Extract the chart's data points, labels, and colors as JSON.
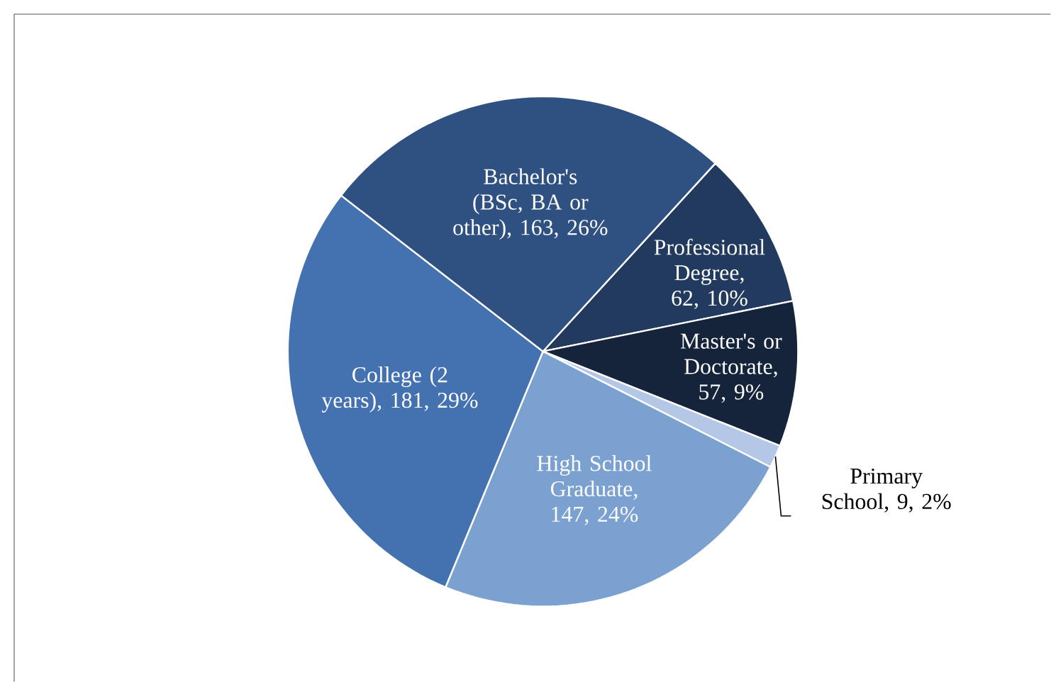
{
  "chart_data": {
    "type": "pie",
    "categories": [
      "Professional Degree",
      "Master's or Doctorate",
      "Primary School",
      "High School Graduate",
      "College (2 years)",
      "Bachelor's (BSc, BA or other)"
    ],
    "values": [
      62,
      57,
      9,
      147,
      181,
      163
    ],
    "colors": [
      "#223a5e",
      "#15243a",
      "#b4c7e7",
      "#7ba1d1",
      "#4472b0",
      "#2f5182"
    ],
    "value_labels": [
      ", 62, 10%",
      ", 57, 9%",
      ", 9, 2%",
      ", 147, 24%",
      ", 181, 29%",
      ", 163, 26%"
    ]
  }
}
